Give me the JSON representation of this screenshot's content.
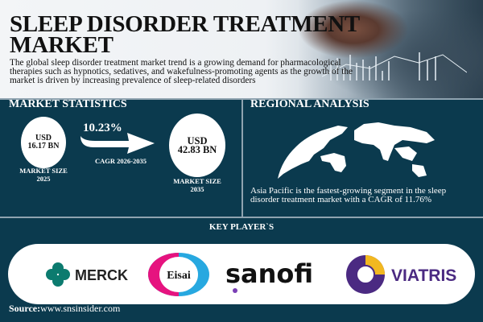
{
  "header": {
    "title_line1": "SLEEP DISORDER TREATMENT",
    "title_line2": "MARKET",
    "description": "The global sleep disorder treatment market trend is a growing demand for pharmacological therapies such as hypnotics, sedatives, and wakefulness-promoting agents as the growth of the market is driven by increasing prevalence of sleep-related disorders"
  },
  "stats": {
    "heading": "MARKET STATISTICS",
    "start": {
      "currency": "USD",
      "value": "16.17 BN",
      "label1": "MARKET SIZE",
      "label2": "2025"
    },
    "cagr": {
      "value": "10.23%",
      "label": "CAGR 2026-2035"
    },
    "end": {
      "currency": "USD",
      "value": "42.83 BN",
      "label1": "MARKET SIZE",
      "label2": "2035"
    }
  },
  "regional": {
    "heading": "REGIONAL ANALYSIS",
    "text": "Asia Pacific is the fastest-growing segment in the sleep disorder treatment market with a CAGR of 11.76%",
    "icon": "world-map-icon"
  },
  "players": {
    "heading": "KEY PLAYER`S",
    "logos": [
      "MERCK",
      "Eisai",
      "sanofi",
      "VIATRIS"
    ],
    "colors": {
      "merck": "#0c7b6f",
      "eisai_pink": "#e6137f",
      "eisai_blue": "#27a8e0",
      "viatris": "#4b2a82",
      "viatris_gold": "#f2b820"
    }
  },
  "source": {
    "label": "Source:",
    "url": "www.snsinsider.com"
  },
  "colors": {
    "background": "#0b3a4e",
    "header": "#f1f3f5"
  }
}
